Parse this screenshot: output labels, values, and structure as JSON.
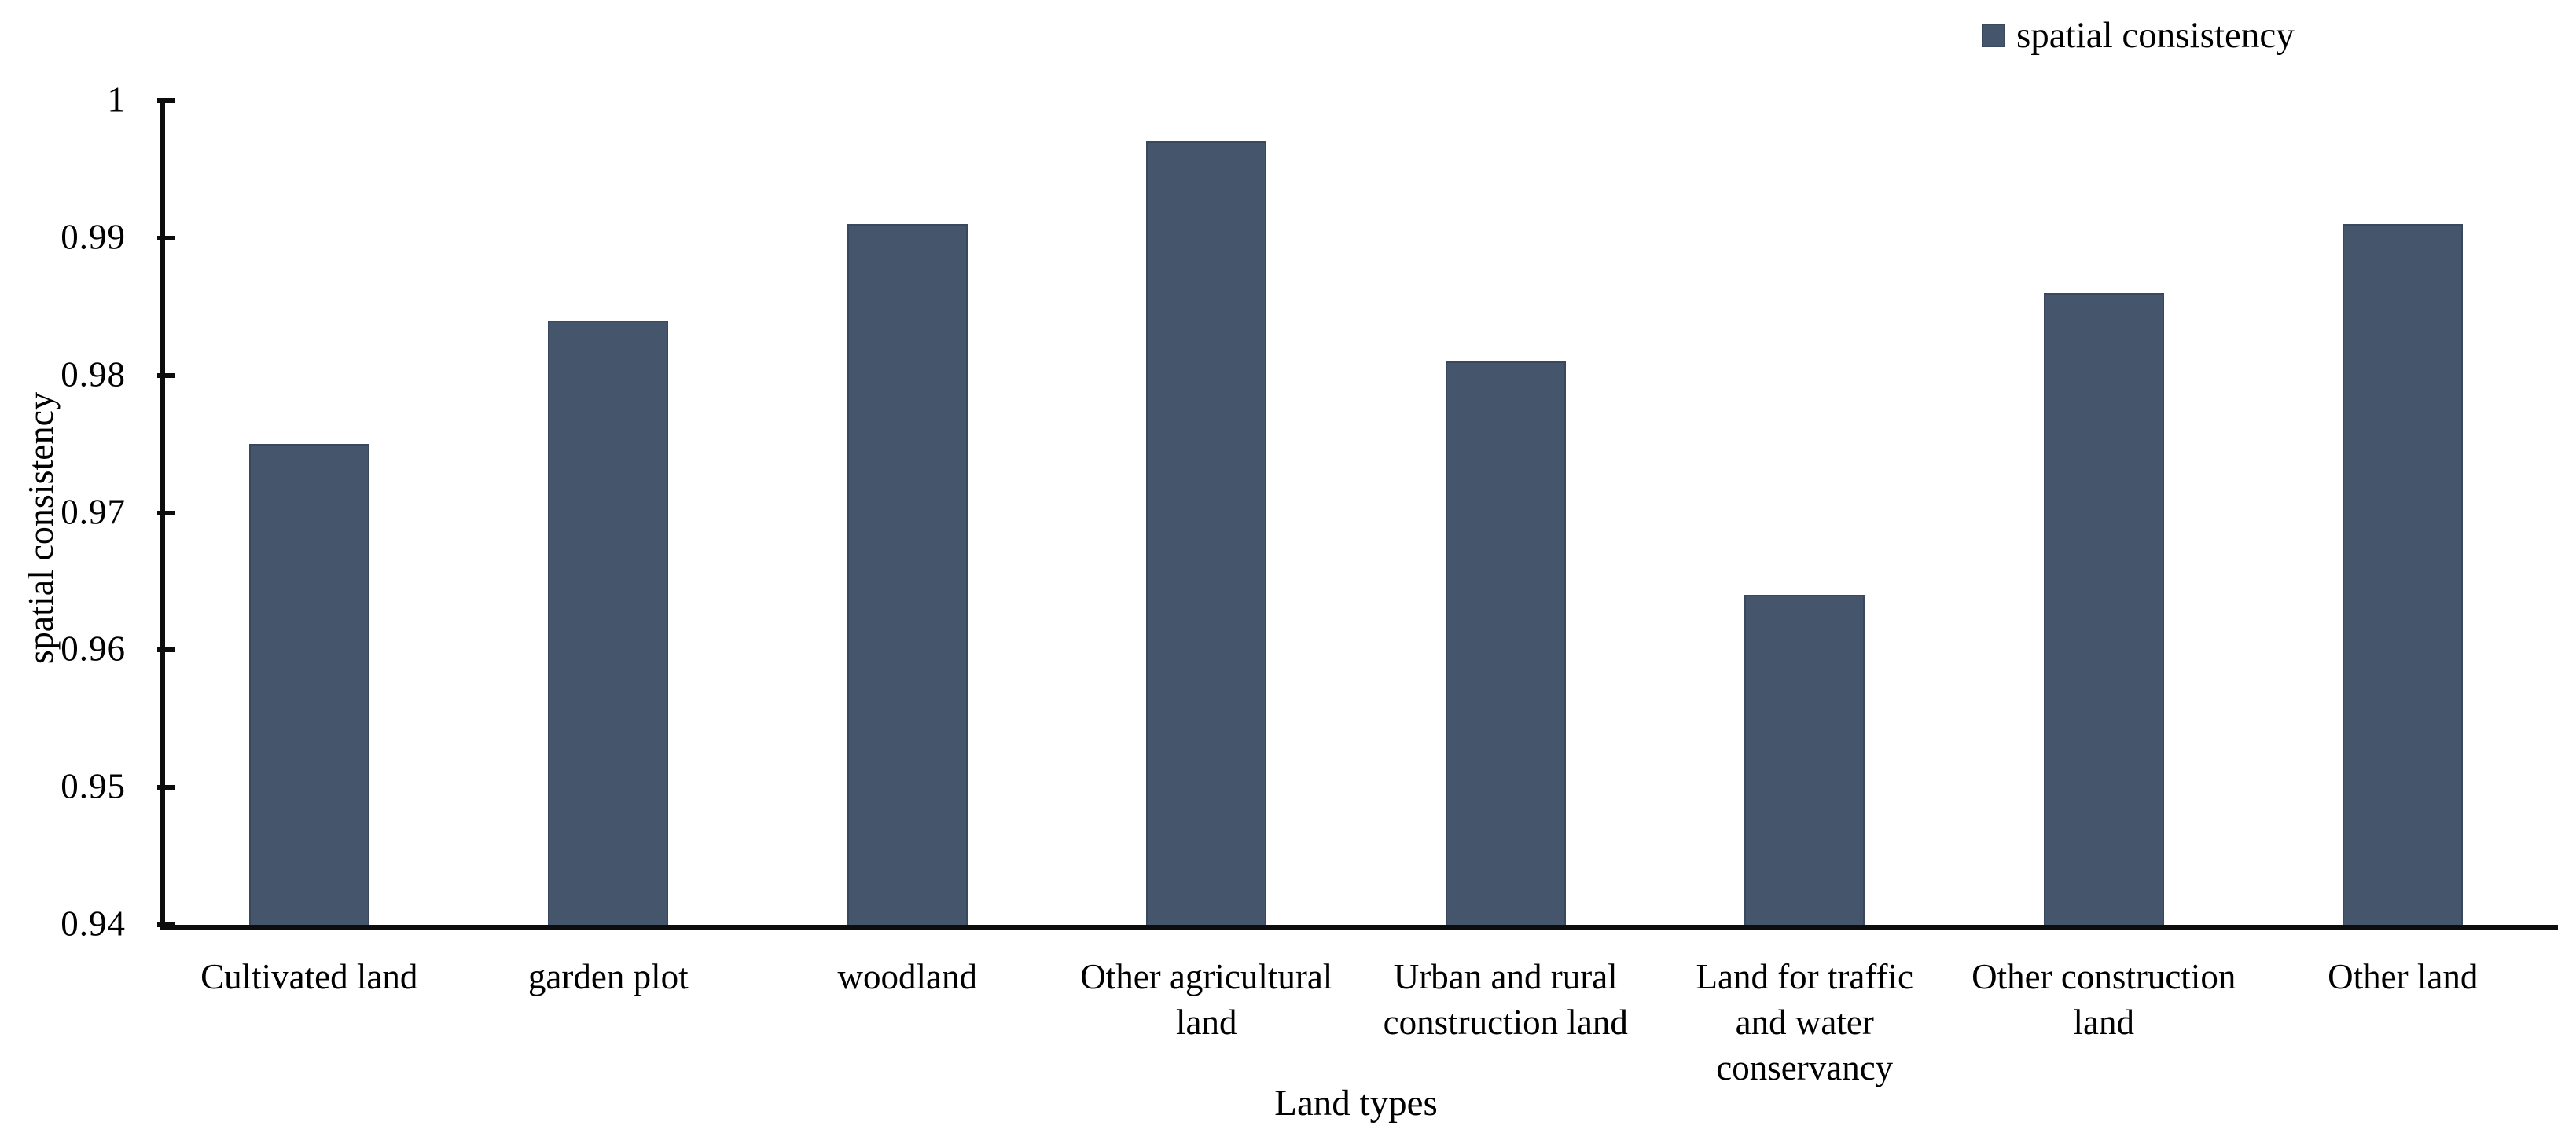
{
  "chart_data": {
    "type": "bar",
    "xlabel": "Land types",
    "ylabel": "spatial consistency",
    "legend_position": "top-right",
    "grid": false,
    "ylim": [
      0.94,
      1.0
    ],
    "ytick_labels": [
      "1",
      "0.99",
      "0.98",
      "0.97",
      "0.96",
      "0.95",
      "0.94"
    ],
    "ytick_values": [
      1.0,
      0.99,
      0.98,
      0.97,
      0.96,
      0.95,
      0.94
    ],
    "bar_color": "#45566c",
    "categories": [
      "Cultivated land",
      "garden plot",
      "woodland",
      "Other agricultural land",
      "Urban and rural construction land",
      "Land for traffic and water conservancy",
      "Other construction land",
      "Other land"
    ],
    "category_lines": [
      [
        "Cultivated land"
      ],
      [
        "garden plot"
      ],
      [
        "woodland"
      ],
      [
        "Other agricultural",
        "land"
      ],
      [
        "Urban and rural",
        "construction land"
      ],
      [
        "Land for traffic",
        "and water",
        "conservancy"
      ],
      [
        "Other construction",
        "land"
      ],
      [
        "Other land"
      ]
    ],
    "series": [
      {
        "name": "spatial consistency",
        "values": [
          0.975,
          0.984,
          0.991,
          0.997,
          0.981,
          0.964,
          0.986,
          0.991
        ]
      }
    ]
  }
}
